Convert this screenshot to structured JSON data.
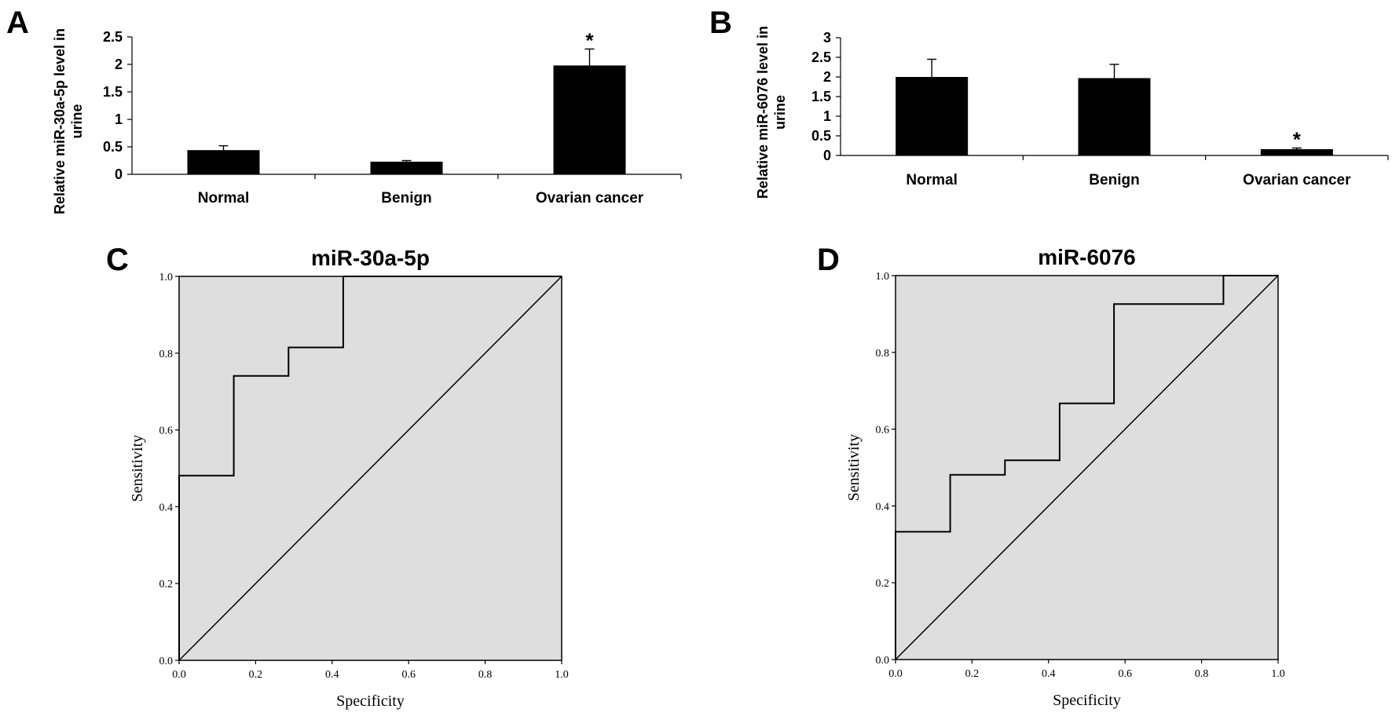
{
  "chart_data": [
    {
      "panel": "A",
      "type": "bar",
      "ylabel": "Relative miR-30a-5p level in urine",
      "categories": [
        "Normal",
        "Benign",
        "Ovarian cancer"
      ],
      "values": [
        0.44,
        0.23,
        1.98
      ],
      "errors": [
        0.08,
        0.02,
        0.3
      ],
      "significance": [
        "",
        "",
        "*"
      ],
      "ylim": [
        0,
        2.5
      ],
      "yticks": [
        "0",
        "0.5",
        "1",
        "1.5",
        "2",
        "2.5"
      ],
      "ytick_values": [
        0,
        0.5,
        1,
        1.5,
        2,
        2.5
      ],
      "bar_color": "#000000"
    },
    {
      "panel": "B",
      "type": "bar",
      "ylabel": "Relative miR-6076 level in urine",
      "categories": [
        "Normal",
        "Benign",
        "Ovarian cancer"
      ],
      "values": [
        2.0,
        1.97,
        0.16
      ],
      "errors": [
        0.45,
        0.35,
        0.03
      ],
      "significance": [
        "",
        "",
        "*"
      ],
      "ylim": [
        0,
        3
      ],
      "yticks": [
        "0",
        "0.5",
        "1",
        "1.5",
        "2",
        "2.5",
        "3"
      ],
      "ytick_values": [
        0,
        0.5,
        1,
        1.5,
        2,
        2.5,
        3
      ],
      "bar_color": "#000000"
    },
    {
      "panel": "C",
      "type": "line",
      "title": "miR-30a-5p",
      "xlabel": "Specificity",
      "ylabel": "Sensitivity",
      "xlim": [
        0,
        1
      ],
      "ylim": [
        0,
        1
      ],
      "ticks": [
        "0.0",
        "0.2",
        "0.4",
        "0.6",
        "0.8",
        "1.0"
      ],
      "tick_values": [
        0,
        0.2,
        0.4,
        0.6,
        0.8,
        1.0
      ],
      "x": [
        0,
        0,
        0.143,
        0.143,
        0.286,
        0.286,
        0.429,
        0.429,
        1.0
      ],
      "y": [
        0,
        0.481,
        0.481,
        0.741,
        0.741,
        0.815,
        0.815,
        1.0,
        1.0
      ],
      "reference_line": true,
      "background": "#dedede"
    },
    {
      "panel": "D",
      "type": "line",
      "title": "miR-6076",
      "xlabel": "Specificity",
      "ylabel": "Sensitivity",
      "xlim": [
        0,
        1
      ],
      "ylim": [
        0,
        1
      ],
      "ticks": [
        "0.0",
        "0.2",
        "0.4",
        "0.6",
        "0.8",
        "1.0"
      ],
      "tick_values": [
        0,
        0.2,
        0.4,
        0.6,
        0.8,
        1.0
      ],
      "x": [
        0,
        0,
        0.143,
        0.143,
        0.286,
        0.286,
        0.429,
        0.429,
        0.571,
        0.571,
        0.857,
        0.857,
        1.0
      ],
      "y": [
        0,
        0.333,
        0.333,
        0.481,
        0.481,
        0.519,
        0.519,
        0.667,
        0.667,
        0.926,
        0.926,
        1.0,
        1.0
      ],
      "reference_line": true,
      "background": "#dedede"
    }
  ]
}
